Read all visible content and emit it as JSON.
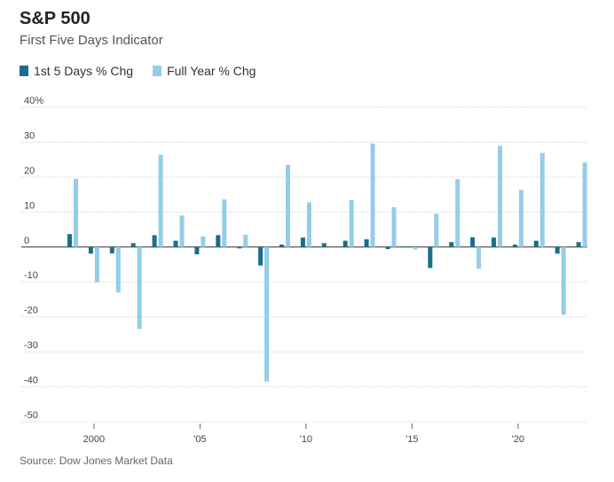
{
  "header": {
    "title": "S&P 500",
    "subtitle": "First Five Days Indicator"
  },
  "legend": {
    "items": [
      {
        "label": "1st 5 Days % Chg",
        "color": "#1a6e8e"
      },
      {
        "label": "Full Year % Chg",
        "color": "#93cde8"
      }
    ]
  },
  "source": "Source: Dow Jones Market Data",
  "chart_data": {
    "type": "bar",
    "categories": [
      "1999",
      "2000",
      "2001",
      "2002",
      "2003",
      "2004",
      "2005",
      "2006",
      "2007",
      "2008",
      "2009",
      "2010",
      "2011",
      "2012",
      "2013",
      "2014",
      "2015",
      "2016",
      "2017",
      "2018",
      "2019",
      "2020",
      "2021",
      "2022",
      "2023"
    ],
    "series": [
      {
        "name": "1st 5 Days % Chg",
        "color": "#1a6e8e",
        "values": [
          3.7,
          -1.9,
          -1.8,
          1.1,
          3.4,
          1.8,
          -2.1,
          3.4,
          -0.4,
          -5.3,
          0.7,
          2.7,
          1.1,
          1.8,
          2.2,
          -0.6,
          0.2,
          -6.0,
          1.4,
          2.8,
          2.7,
          0.7,
          1.8,
          -1.9,
          1.4
        ]
      },
      {
        "name": "Full Year % Chg",
        "color": "#93cde8",
        "values": [
          19.5,
          -10.1,
          -13.0,
          -23.4,
          26.4,
          9.0,
          3.0,
          13.6,
          3.5,
          -38.5,
          23.5,
          12.8,
          0.0,
          13.4,
          29.6,
          11.4,
          -0.7,
          9.5,
          19.4,
          -6.2,
          28.9,
          16.3,
          26.9,
          -19.4,
          24.2
        ]
      }
    ],
    "y_ticks": [
      "40%",
      "30",
      "20",
      "10",
      "0",
      "-10",
      "-20",
      "-30",
      "-40",
      "-50"
    ],
    "y_tick_values": [
      40,
      30,
      20,
      10,
      0,
      -10,
      -20,
      -30,
      -40,
      -50
    ],
    "x_ticks": [
      {
        "label": "2000",
        "year": 2000
      },
      {
        "label": "'05",
        "year": 2005
      },
      {
        "label": "'10",
        "year": 2010
      },
      {
        "label": "'15",
        "year": 2015
      },
      {
        "label": "'20",
        "year": 2020
      }
    ],
    "ylim": [
      -50,
      40
    ],
    "grid": true,
    "legend_position": "top-left"
  }
}
